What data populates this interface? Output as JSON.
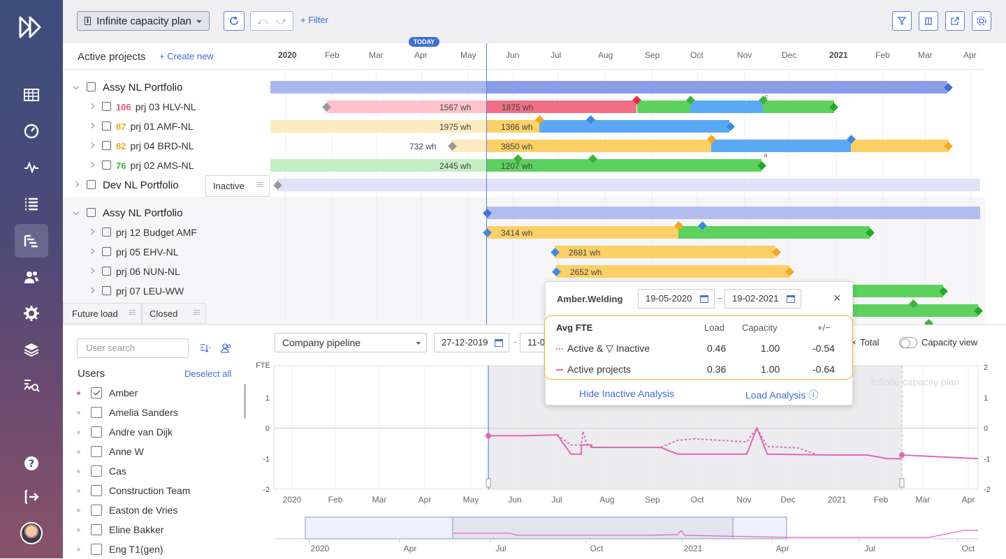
{
  "toolbar": {
    "plan": "Infinite capacity plan",
    "undo": "⤺",
    "redo": "⤻",
    "filter": "+ Filter"
  },
  "gantt": {
    "header": "Active projects",
    "create": "+ Create new",
    "months": [
      "2020",
      "Feb",
      "Mar",
      "Apr",
      "May",
      "Jun",
      "Jul",
      "Aug",
      "Sep",
      "Oct",
      "Nov",
      "Dec",
      "2021",
      "Feb",
      "Mar",
      "Apr"
    ],
    "today": "TODAY",
    "rows": [
      {
        "label": "Assy NL Portfolio",
        "num": "",
        "bold": true
      },
      {
        "label": "prj 03 HLV-NL",
        "num": "106",
        "numColor": "#e85a6e"
      },
      {
        "label": "prj 01 AMF-NL",
        "num": "87",
        "numColor": "#f5a623"
      },
      {
        "label": "prj 04 BRD-NL",
        "num": "82",
        "numColor": "#f5a623"
      },
      {
        "label": "prj 02 AMS-NL",
        "num": "76",
        "numColor": "#3bb33b"
      },
      {
        "label": "Dev NL Portfolio",
        "num": "",
        "bold": true
      },
      {
        "label": "Assy NL Portfolio",
        "num": "",
        "bold": true
      },
      {
        "label": "prj 12 Budget AMF",
        "num": ""
      },
      {
        "label": "prj 05 EHV-NL",
        "num": ""
      },
      {
        "label": "prj 06 NUN-NL",
        "num": ""
      },
      {
        "label": "prj 07 LEU-WW",
        "num": ""
      }
    ],
    "barLabels": {
      "b1a": "1567 wh",
      "b1b": "1875 wh",
      "b2a": "1975 wh",
      "b2b": "1366 wh",
      "b3a": "732 wh",
      "b3b": "3850 wh",
      "b4a": "2445 wh",
      "b4b": "1207 wh",
      "b7": "3414 wh",
      "b8": "2681 wh",
      "b9": "2652 wh"
    },
    "markC": "c",
    "markO": "o"
  },
  "tabs": {
    "inactive": "Inactive",
    "future": "Future load",
    "closed": "Closed"
  },
  "users": {
    "search": "User search",
    "title": "Users",
    "deselect": "Deselect all",
    "list": [
      "Amber",
      "Amelia Sanders",
      "Andre van Dijk",
      "Anne W",
      "Cas",
      "Construction Team",
      "Easton de Vries",
      "Eline Bakker",
      "Eng T1(gen)"
    ]
  },
  "chart": {
    "pipeline": "Company pipeline",
    "from": "27-12-2019",
    "to": "11-0",
    "total": "Total",
    "capacityView": "Capacity view",
    "ylabel": "FTE",
    "watermark": "Infinite capacity plan",
    "yticks": [
      "1",
      "0",
      "-1",
      "-2"
    ],
    "yticksRight": [
      "2",
      "1",
      "0",
      "-1",
      "-2"
    ],
    "months": [
      "2020",
      "Feb",
      "Mar",
      "Apr",
      "May",
      "Jun",
      "Jul",
      "Aug",
      "Sep",
      "Oct",
      "Nov",
      "Dec",
      "2021",
      "Feb",
      "Mar",
      "Apr"
    ],
    "nav": [
      "2020",
      "Apr",
      "Jul",
      "Oct",
      "2021",
      "Apr",
      "Jul",
      "Oct"
    ]
  },
  "popup": {
    "resource": "Amber.Welding",
    "from": "19-05-2020",
    "to": "19-02-2021",
    "col0": "Avg FTE",
    "col1": "Load",
    "col2": "Capacity",
    "col3": "+/−",
    "rows": [
      {
        "name": "Active & ▽ Inactive",
        "load": "0.46",
        "cap": "1.00",
        "diff": "-0.54"
      },
      {
        "name": "Active projects",
        "load": "0.36",
        "cap": "1.00",
        "diff": "-0.64"
      }
    ],
    "hide": "Hide Inactive Analysis",
    "load": "Load Analysis ⓘ"
  },
  "chart_data": {
    "type": "line",
    "ylabel": "FTE",
    "ylim": [
      -2,
      2
    ],
    "x": [
      "2020",
      "Feb",
      "Mar",
      "Apr",
      "May",
      "Jun",
      "Jul",
      "Aug",
      "Sep",
      "Oct",
      "Nov",
      "Dec",
      "2021",
      "Feb",
      "Mar",
      "Apr"
    ],
    "series": [
      {
        "name": "Active projects",
        "style": "solid",
        "color": "#e066b8",
        "points": [
          [
            0.0,
            -0.25
          ],
          [
            1.0,
            -0.25
          ],
          [
            2.0,
            -0.22
          ],
          [
            2.4,
            -0.85
          ],
          [
            2.7,
            -0.85
          ],
          [
            2.7,
            -0.55
          ],
          [
            3.0,
            -0.55
          ],
          [
            3.0,
            -0.63
          ],
          [
            5.0,
            -0.63
          ],
          [
            5.5,
            -0.85
          ],
          [
            7.5,
            -0.85
          ],
          [
            7.8,
            0.0
          ],
          [
            8.1,
            -0.85
          ],
          [
            10.0,
            -0.88
          ],
          [
            11.0,
            -0.88
          ],
          [
            11.6,
            -1.0
          ],
          [
            12.0,
            -1.0
          ]
        ]
      },
      {
        "name": "Active & ▽ Inactive",
        "style": "dashed",
        "color": "#e066b8",
        "points": [
          [
            2.0,
            -0.22
          ],
          [
            2.4,
            -0.55
          ],
          [
            2.7,
            -0.55
          ],
          [
            2.75,
            -0.1
          ],
          [
            2.85,
            -0.5
          ],
          [
            3.0,
            -0.63
          ],
          [
            5.0,
            -0.63
          ],
          [
            5.5,
            -0.4
          ],
          [
            6.0,
            -0.35
          ],
          [
            7.5,
            -0.45
          ],
          [
            7.8,
            0.0
          ],
          [
            8.1,
            -0.6
          ],
          [
            9.0,
            -0.65
          ],
          [
            9.5,
            -0.85
          ]
        ]
      }
    ],
    "grid": true,
    "legend": "top-right"
  }
}
